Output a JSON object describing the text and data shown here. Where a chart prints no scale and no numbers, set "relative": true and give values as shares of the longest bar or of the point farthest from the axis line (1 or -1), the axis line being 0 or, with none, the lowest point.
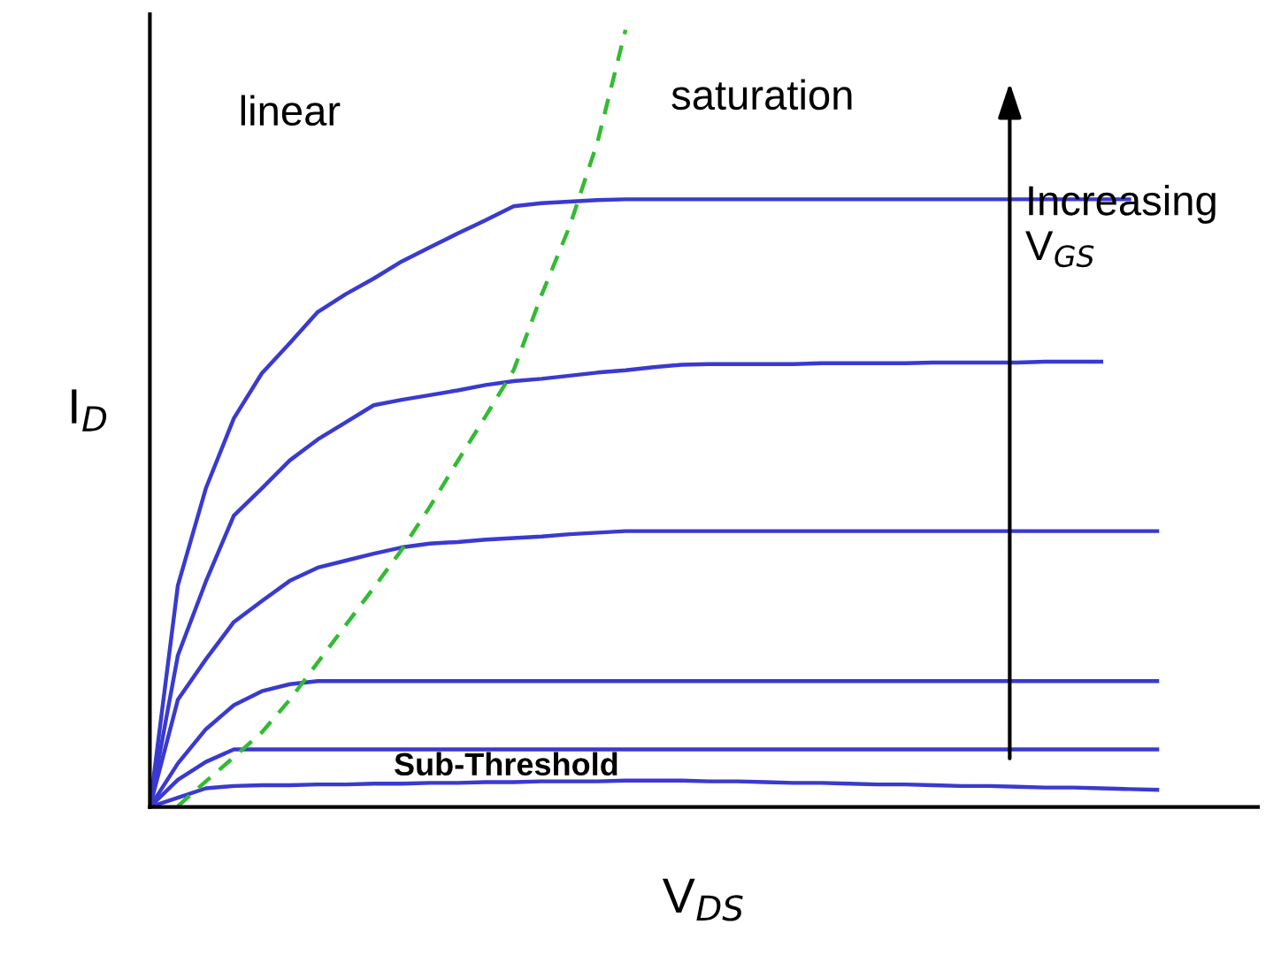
{
  "chart_data": {
    "type": "line",
    "relative": true,
    "xlabel": "V$_{DS}$",
    "ylabel": "I$_{D}$",
    "annotations": [
      "linear",
      "saturation",
      "Increasing\nV$_{GS}$",
      "Sub-Threshold"
    ],
    "legend": false,
    "marker": "none",
    "categories": [
      null,
      null,
      null,
      null,
      null,
      null,
      null,
      null,
      null,
      null,
      null,
      null,
      null,
      null,
      null,
      null,
      null,
      null,
      null,
      null,
      null,
      null,
      null,
      null,
      null,
      null,
      null,
      null,
      null,
      null,
      null,
      null,
      null,
      null,
      null,
      null,
      null
    ],
    "series": [
      {
        "color": "#3a3ad0",
        "values": [
          0,
          0.285,
          0.41,
          0.5,
          0.558,
          0.597,
          0.637,
          0.66,
          0.68,
          0.702,
          0.72,
          0.738,
          0.755,
          0.773,
          0.777,
          0.779,
          0.781,
          0.782,
          0.782,
          0.782,
          0.782,
          0.782,
          0.782,
          0.782,
          0.782,
          0.782,
          0.782,
          0.782,
          0.782,
          0.782,
          0.782,
          0.782,
          0.782,
          0.782,
          0.782,
          0.782,
          null
        ]
      },
      {
        "color": "#3a3ad0",
        "values": [
          0,
          0.195,
          0.29,
          0.375,
          0.41,
          0.446,
          0.473,
          0.495,
          0.517,
          0.524,
          0.53,
          0.536,
          0.543,
          0.548,
          0.551,
          0.555,
          0.559,
          0.562,
          0.566,
          0.569,
          0.57,
          0.57,
          0.57,
          0.57,
          0.571,
          0.571,
          0.571,
          0.571,
          0.572,
          0.572,
          0.572,
          0.572,
          0.573,
          0.573,
          0.573,
          null,
          null
        ]
      },
      {
        "color": "#3a3ad0",
        "values": [
          0,
          0.138,
          0.19,
          0.238,
          0.265,
          0.291,
          0.308,
          0.317,
          0.326,
          0.334,
          0.339,
          0.341,
          0.344,
          0.346,
          0.348,
          0.351,
          0.353,
          0.355,
          0.355,
          0.355,
          0.355,
          0.355,
          0.355,
          0.355,
          0.355,
          0.355,
          0.355,
          0.355,
          0.355,
          0.355,
          0.355,
          0.355,
          0.355,
          0.355,
          0.355,
          0.355,
          0.355
        ]
      },
      {
        "color": "#3a3ad0",
        "values": [
          0,
          0.056,
          0.1,
          0.131,
          0.149,
          0.158,
          0.162,
          0.162,
          0.162,
          0.162,
          0.162,
          0.162,
          0.162,
          0.162,
          0.162,
          0.162,
          0.162,
          0.162,
          0.162,
          0.162,
          0.162,
          0.162,
          0.162,
          0.162,
          0.162,
          0.162,
          0.162,
          0.162,
          0.162,
          0.162,
          0.162,
          0.162,
          0.162,
          0.162,
          0.162,
          0.162,
          0.162
        ]
      },
      {
        "color": "#3a3ad0",
        "values": [
          0,
          0.035,
          0.058,
          0.074,
          0.074,
          0.074,
          0.074,
          0.074,
          0.074,
          0.074,
          0.074,
          0.074,
          0.074,
          0.074,
          0.074,
          0.074,
          0.074,
          0.074,
          0.074,
          0.074,
          0.074,
          0.074,
          0.074,
          0.074,
          0.074,
          0.074,
          0.074,
          0.074,
          0.074,
          0.074,
          0.074,
          0.074,
          0.074,
          0.074,
          0.074,
          0.074,
          0.074
        ]
      },
      {
        "color": "#3a3ad0",
        "values": [
          0,
          0.012,
          0.024,
          0.027,
          0.028,
          0.028,
          0.029,
          0.029,
          0.03,
          0.03,
          0.031,
          0.031,
          0.032,
          0.032,
          0.033,
          0.033,
          0.033,
          0.034,
          0.034,
          0.034,
          0.033,
          0.033,
          0.032,
          0.031,
          0.031,
          0.03,
          0.029,
          0.029,
          0.028,
          0.027,
          0.027,
          0.026,
          0.025,
          0.025,
          0.024,
          0.023,
          0.022
        ]
      },
      {
        "color": "#33bb33",
        "line_style": "dashed",
        "values": [
          null,
          0.001,
          0.033,
          0.064,
          0.096,
          0.138,
          0.186,
          0.234,
          0.282,
          0.331,
          0.386,
          0.445,
          0.503,
          0.562,
          0.659,
          0.747,
          0.856,
          1.0,
          null,
          null,
          null,
          null,
          null,
          null,
          null,
          null,
          null,
          null,
          null,
          null,
          null,
          null,
          null,
          null,
          null,
          null,
          null
        ]
      }
    ]
  }
}
